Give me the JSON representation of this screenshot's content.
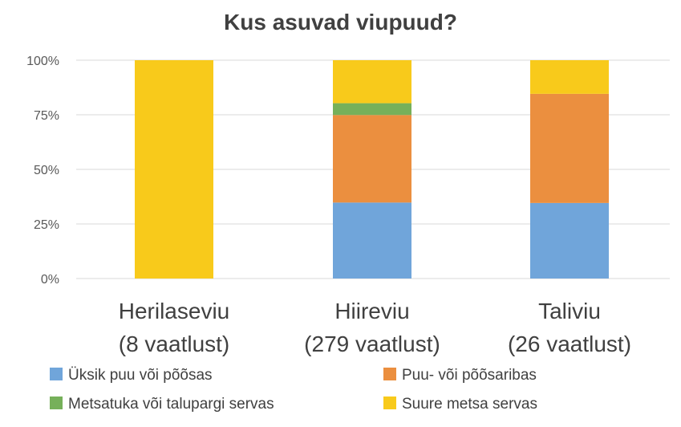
{
  "chart_data": {
    "type": "bar",
    "stacked": true,
    "percent": true,
    "title": "Kus asuvad viupuud?",
    "yticks": [
      "0%",
      "25%",
      "50%",
      "75%",
      "100%"
    ],
    "ylim": [
      0,
      100
    ],
    "categories": [
      {
        "line1": "Herilaseviu",
        "line2": "(8 vaatlust)"
      },
      {
        "line1": "Hiireviu",
        "line2": "(279 vaatlust)"
      },
      {
        "line1": "Taliviu",
        "line2": "(26 vaatlust)"
      }
    ],
    "series": [
      {
        "name": "Üksik puu või põõsas",
        "color": "#70A5DA",
        "values": [
          0,
          34.8,
          34.6
        ]
      },
      {
        "name": "Puu- või põõsaribas",
        "color": "#EB8F3F",
        "values": [
          0,
          40.1,
          50.0
        ]
      },
      {
        "name": "Metsatuka või talupargi servas",
        "color": "#76B05A",
        "values": [
          0,
          5.4,
          0
        ]
      },
      {
        "name": "Suure metsa servas",
        "color": "#F8CA1B",
        "values": [
          100,
          19.7,
          15.4
        ]
      }
    ],
    "legend_order": [
      0,
      1,
      2,
      3
    ],
    "grid": true,
    "legend_position": "bottom"
  }
}
